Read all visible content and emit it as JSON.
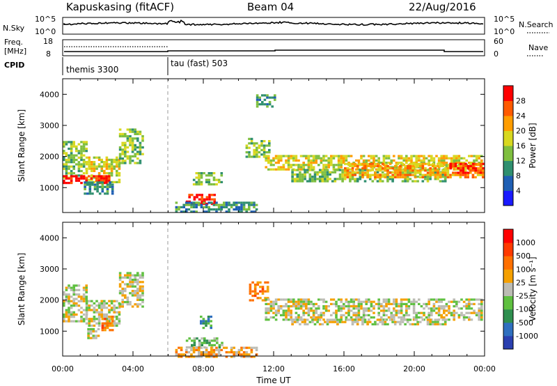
{
  "header": {
    "title": "Kapuskasing (fitACF)",
    "beam": "Beam 04",
    "date": "22/Aug/2016"
  },
  "nsky_panel": {
    "left_label": "N.Sky",
    "left_ticks": [
      "10^5",
      "10^0"
    ],
    "right_ticks": [
      "10^5",
      "10^0"
    ],
    "right_label": "N.Search"
  },
  "freq_panel": {
    "left_label_top": "Freq.",
    "left_label_bottom": "[MHz]",
    "left_ticks": [
      "18",
      "8"
    ],
    "right_ticks": [
      "60",
      "0"
    ],
    "right_label": "Nave"
  },
  "cpid_panel": {
    "label": "CPID",
    "modes": [
      {
        "name": "themis 3300",
        "start_hour": 0
      },
      {
        "name": "tau (fast) 503",
        "start_hour": 6
      }
    ]
  },
  "colors": {
    "power_scale": [
      "#1a1aff",
      "#1f5fb4",
      "#2f8f6f",
      "#7fbf3f",
      "#d8d820",
      "#ff9d00",
      "#ff5a00",
      "#ff0000"
    ],
    "velocity_scale": [
      "#2a3fb0",
      "#2f6fbf",
      "#2f8f4f",
      "#5fc040",
      "#bcbcb4",
      "#f5a000",
      "#ff7000",
      "#ff3a00",
      "#ff0000"
    ]
  },
  "chart_data": [
    {
      "type": "heatmap",
      "name": "power",
      "xlabel": "",
      "ylabel": "Slant Range [km]",
      "xlim": [
        0,
        24
      ],
      "ylim": [
        200,
        4500
      ],
      "yticks": [
        "1000",
        "2000",
        "3000",
        "4000"
      ],
      "colorbar_label": "Power [dB]",
      "colorbar_ticks": [
        "4",
        "8",
        "12",
        "16",
        "20",
        "24",
        "28"
      ],
      "regions": [
        {
          "t0": 0.0,
          "t1": 1.3,
          "r0": 1350,
          "r1": 2500,
          "level": 3
        },
        {
          "t0": 1.3,
          "t1": 3.2,
          "r0": 1200,
          "r1": 2000,
          "level": 4
        },
        {
          "t0": 3.2,
          "t1": 4.6,
          "r0": 1800,
          "r1": 2900,
          "level": 3
        },
        {
          "t0": 0.0,
          "t1": 2.6,
          "r0": 1150,
          "r1": 1400,
          "level": 7
        },
        {
          "t0": 1.2,
          "t1": 2.8,
          "r0": 800,
          "r1": 1200,
          "level": 2
        },
        {
          "t0": 7.0,
          "t1": 8.8,
          "r0": 500,
          "r1": 800,
          "level": 7
        },
        {
          "t0": 6.4,
          "t1": 11.0,
          "r0": 200,
          "r1": 550,
          "level": 2
        },
        {
          "t0": 7.4,
          "t1": 9.0,
          "r0": 1100,
          "r1": 1500,
          "level": 3
        },
        {
          "t0": 10.4,
          "t1": 11.7,
          "r0": 2000,
          "r1": 2600,
          "level": 3
        },
        {
          "t0": 11.0,
          "t1": 12.0,
          "r0": 3600,
          "r1": 4000,
          "level": 2
        },
        {
          "t0": 11.5,
          "t1": 23.9,
          "r0": 1550,
          "r1": 2050,
          "level": 4
        },
        {
          "t0": 13.0,
          "t1": 21.8,
          "r0": 1200,
          "r1": 1600,
          "level": 3
        },
        {
          "t0": 16.0,
          "t1": 23.9,
          "r0": 1350,
          "r1": 1800,
          "level": 5
        },
        {
          "t0": 22.0,
          "t1": 23.9,
          "r0": 1500,
          "r1": 1800,
          "level": 7
        }
      ]
    },
    {
      "type": "heatmap",
      "name": "velocity",
      "xlabel": "Time UT",
      "ylabel": "Slant Range [km]",
      "xlim": [
        0,
        24
      ],
      "ylim": [
        200,
        4500
      ],
      "yticks": [
        "1000",
        "2000",
        "3000",
        "4000"
      ],
      "xticks": [
        "00:00",
        "04:00",
        "08:00",
        "12:00",
        "16:00",
        "20:00",
        "00:00"
      ],
      "colorbar_label": "Velocity [m s⁻¹]",
      "colorbar_ticks": [
        "1000",
        "500",
        "100",
        "25",
        "-25",
        "-100",
        "-500",
        "-1000"
      ],
      "regions": [
        {
          "t0": 0.0,
          "t1": 1.3,
          "r0": 1300,
          "r1": 2500,
          "level": 4
        },
        {
          "t0": 1.3,
          "t1": 3.2,
          "r0": 1200,
          "r1": 2000,
          "level": 4
        },
        {
          "t0": 3.2,
          "t1": 4.6,
          "r0": 1800,
          "r1": 2900,
          "level": 4
        },
        {
          "t0": 2.2,
          "t1": 2.9,
          "r0": 1000,
          "r1": 1500,
          "level": 6
        },
        {
          "t0": 1.4,
          "t1": 2.0,
          "r0": 800,
          "r1": 1100,
          "level": 4
        },
        {
          "t0": 7.0,
          "t1": 9.0,
          "r0": 500,
          "r1": 800,
          "level": 3
        },
        {
          "t0": 6.4,
          "t1": 11.0,
          "r0": 200,
          "r1": 500,
          "level": 5
        },
        {
          "t0": 7.8,
          "t1": 8.5,
          "r0": 1100,
          "r1": 1500,
          "level": 2
        },
        {
          "t0": 10.6,
          "t1": 11.7,
          "r0": 2000,
          "r1": 2600,
          "level": 6
        },
        {
          "t0": 11.5,
          "t1": 23.9,
          "r0": 1400,
          "r1": 2050,
          "level": 4
        },
        {
          "t0": 13.0,
          "t1": 21.8,
          "r0": 1200,
          "r1": 1400,
          "level": 4
        }
      ]
    }
  ]
}
